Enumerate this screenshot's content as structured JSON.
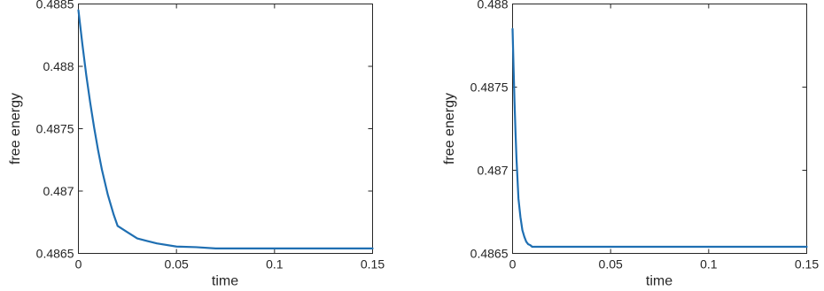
{
  "chart_data": [
    {
      "type": "line",
      "title": "",
      "xlabel": "time",
      "ylabel": "free energy",
      "xlim": [
        0,
        0.15
      ],
      "ylim": [
        0.4865,
        0.4885
      ],
      "xticks": [
        0,
        0.05,
        0.1,
        0.15
      ],
      "xtick_labels": [
        "0",
        "0.05",
        "0.1",
        "0.15"
      ],
      "yticks": [
        0.4865,
        0.487,
        0.4875,
        0.488,
        0.4885
      ],
      "ytick_labels": [
        "0.4865",
        "0.487",
        "0.4875",
        "0.488",
        "0.4885"
      ],
      "grid": false,
      "color": "#1f6fb2",
      "series": [
        {
          "x": [
            0,
            0.002,
            0.004,
            0.006,
            0.008,
            0.01,
            0.012,
            0.015,
            0.018,
            0.02,
            0.025,
            0.03,
            0.035,
            0.04,
            0.05,
            0.06,
            0.07,
            0.08,
            0.1,
            0.12,
            0.15
          ],
          "values": [
            0.48845,
            0.48818,
            0.48793,
            0.48771,
            0.48751,
            0.48733,
            0.48717,
            0.48697,
            0.48681,
            0.48672,
            0.48667,
            0.48662,
            0.4866,
            0.48658,
            0.486555,
            0.48655,
            0.48654,
            0.48654,
            0.48654,
            0.48654,
            0.48654
          ]
        }
      ]
    },
    {
      "type": "line",
      "title": "",
      "xlabel": "time",
      "ylabel": "free energy",
      "xlim": [
        0,
        0.15
      ],
      "ylim": [
        0.4865,
        0.488
      ],
      "xticks": [
        0,
        0.05,
        0.1,
        0.15
      ],
      "xtick_labels": [
        "0",
        "0.05",
        "0.1",
        "0.15"
      ],
      "yticks": [
        0.4865,
        0.487,
        0.4875,
        0.488
      ],
      "ytick_labels": [
        "0.4865",
        "0.487",
        "0.4875",
        "0.488"
      ],
      "grid": false,
      "color": "#1f6fb2",
      "series": [
        {
          "x": [
            0,
            0.0005,
            0.001,
            0.0015,
            0.002,
            0.003,
            0.004,
            0.005,
            0.006,
            0.007,
            0.008,
            0.009,
            0.01,
            0.012,
            0.015,
            0.02,
            0.03,
            0.05,
            0.08,
            0.1,
            0.15
          ],
          "values": [
            0.48785,
            0.48762,
            0.48741,
            0.48723,
            0.48707,
            0.48683,
            0.48672,
            0.48664,
            0.4866,
            0.48657,
            0.486555,
            0.48655,
            0.48654,
            0.48654,
            0.48654,
            0.48654,
            0.48654,
            0.48654,
            0.48654,
            0.48654,
            0.48654
          ]
        }
      ]
    }
  ]
}
